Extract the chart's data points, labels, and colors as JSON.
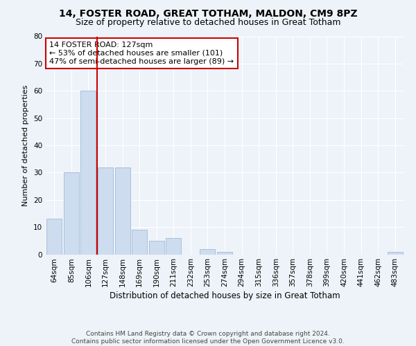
{
  "title": "14, FOSTER ROAD, GREAT TOTHAM, MALDON, CM9 8PZ",
  "subtitle": "Size of property relative to detached houses in Great Totham",
  "xlabel": "Distribution of detached houses by size in Great Totham",
  "ylabel": "Number of detached properties",
  "categories": [
    "64sqm",
    "85sqm",
    "106sqm",
    "127sqm",
    "148sqm",
    "169sqm",
    "190sqm",
    "211sqm",
    "232sqm",
    "253sqm",
    "274sqm",
    "294sqm",
    "315sqm",
    "336sqm",
    "357sqm",
    "378sqm",
    "399sqm",
    "420sqm",
    "441sqm",
    "462sqm",
    "483sqm"
  ],
  "values": [
    13,
    30,
    60,
    32,
    32,
    9,
    5,
    6,
    0,
    2,
    1,
    0,
    0,
    0,
    0,
    0,
    0,
    0,
    0,
    0,
    1
  ],
  "bar_color": "#cddcee",
  "bar_edge_color": "#a8c0dd",
  "vline_color": "#cc0000",
  "ylim": [
    0,
    80
  ],
  "yticks": [
    0,
    10,
    20,
    30,
    40,
    50,
    60,
    70,
    80
  ],
  "annotation_text": "14 FOSTER ROAD: 127sqm\n← 53% of detached houses are smaller (101)\n47% of semi-detached houses are larger (89) →",
  "annotation_box_color": "#cc0000",
  "annotation_fontsize": 8,
  "title_fontsize": 10,
  "subtitle_fontsize": 9,
  "ylabel_fontsize": 8,
  "xlabel_fontsize": 8.5,
  "tick_fontsize": 7.5,
  "footer": "Contains HM Land Registry data © Crown copyright and database right 2024.\nContains public sector information licensed under the Open Government Licence v3.0.",
  "footer_fontsize": 6.5,
  "bg_color": "#eef3f9",
  "grid_color": "#ffffff"
}
